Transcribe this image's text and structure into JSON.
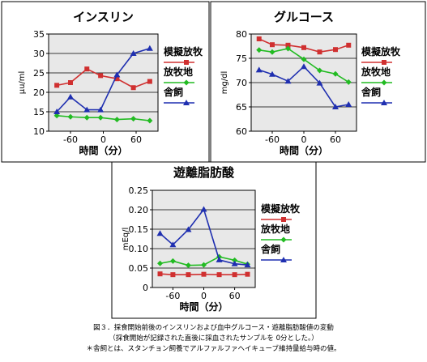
{
  "colors": {
    "放牧地": "#22bb22",
    "模擬放牧": "#d03030",
    "舎飼": "#1f2fb0"
  },
  "chart_data": [
    {
      "type": "line",
      "title": "インスリン",
      "xlabel": "時間（分）",
      "ylabel": "μu/ml",
      "xlim": [
        -100,
        100
      ],
      "xticks": [
        -60,
        0,
        60
      ],
      "ylim": [
        10,
        35
      ],
      "yticks": [
        10,
        15,
        20,
        25,
        30,
        35
      ],
      "x": [
        -85,
        -60,
        -30,
        -5,
        25,
        55,
        85
      ],
      "series": [
        {
          "name": "模擬放牧",
          "values": [
            21.8,
            22.5,
            26.0,
            24.3,
            23.5,
            21.2,
            22.8
          ]
        },
        {
          "name": "放牧地",
          "values": [
            14.0,
            13.7,
            13.5,
            13.5,
            13.0,
            13.2,
            12.7
          ]
        },
        {
          "name": "舎飼",
          "values": [
            15.0,
            18.8,
            15.5,
            15.5,
            24.5,
            30.0,
            31.3
          ]
        }
      ],
      "legend": "right"
    },
    {
      "type": "line",
      "title": "グルコース",
      "xlabel": "時間（分）",
      "ylabel": "mg/dl",
      "xlim": [
        -100,
        100
      ],
      "xticks": [
        -60,
        0,
        60
      ],
      "ylim": [
        60,
        80
      ],
      "yticks": [
        60,
        65,
        70,
        75,
        80
      ],
      "x": [
        -85,
        -60,
        -30,
        0,
        30,
        60,
        85
      ],
      "series": [
        {
          "name": "模擬放牧",
          "values": [
            79.0,
            77.8,
            77.7,
            77.2,
            76.3,
            76.8,
            77.7
          ]
        },
        {
          "name": "放牧地",
          "values": [
            76.7,
            76.3,
            77.0,
            74.8,
            72.5,
            71.8,
            70.1
          ]
        },
        {
          "name": "舎飼",
          "values": [
            72.6,
            71.7,
            70.3,
            73.3,
            69.9,
            65.0,
            65.5
          ]
        }
      ],
      "legend": "right"
    },
    {
      "type": "line",
      "title": "遊離脂肪酸",
      "xlabel": "時間（分）",
      "ylabel": "mEq/l",
      "xlim": [
        -100,
        100
      ],
      "xticks": [
        -60,
        0,
        60
      ],
      "ylim": [
        0,
        0.25
      ],
      "yticks": [
        0,
        0.05,
        0.1,
        0.15,
        0.2,
        0.25
      ],
      "x": [
        -85,
        -60,
        -30,
        0,
        30,
        60,
        85
      ],
      "series": [
        {
          "name": "模擬放牧",
          "values": [
            0.035,
            0.033,
            0.033,
            0.034,
            0.033,
            0.033,
            0.034
          ]
        },
        {
          "name": "放牧地",
          "values": [
            0.062,
            0.068,
            0.057,
            0.058,
            0.079,
            0.07,
            0.06
          ]
        },
        {
          "name": "舎飼",
          "values": [
            0.139,
            0.11,
            0.149,
            0.201,
            0.071,
            0.061,
            0.058
          ]
        }
      ],
      "legend": "right"
    }
  ],
  "caption": {
    "line1": "図３．採食開始前後のインスリンおよび血中グルコース・遊離脂肪酸値の変動",
    "line2": "（採食開始が記録された直後に採血されたサンプルを 0分とした。）",
    "line3": "＊舎飼とは、スタンチョン飼養でアルファルファヘイキューブ維持量給与時の値。"
  }
}
